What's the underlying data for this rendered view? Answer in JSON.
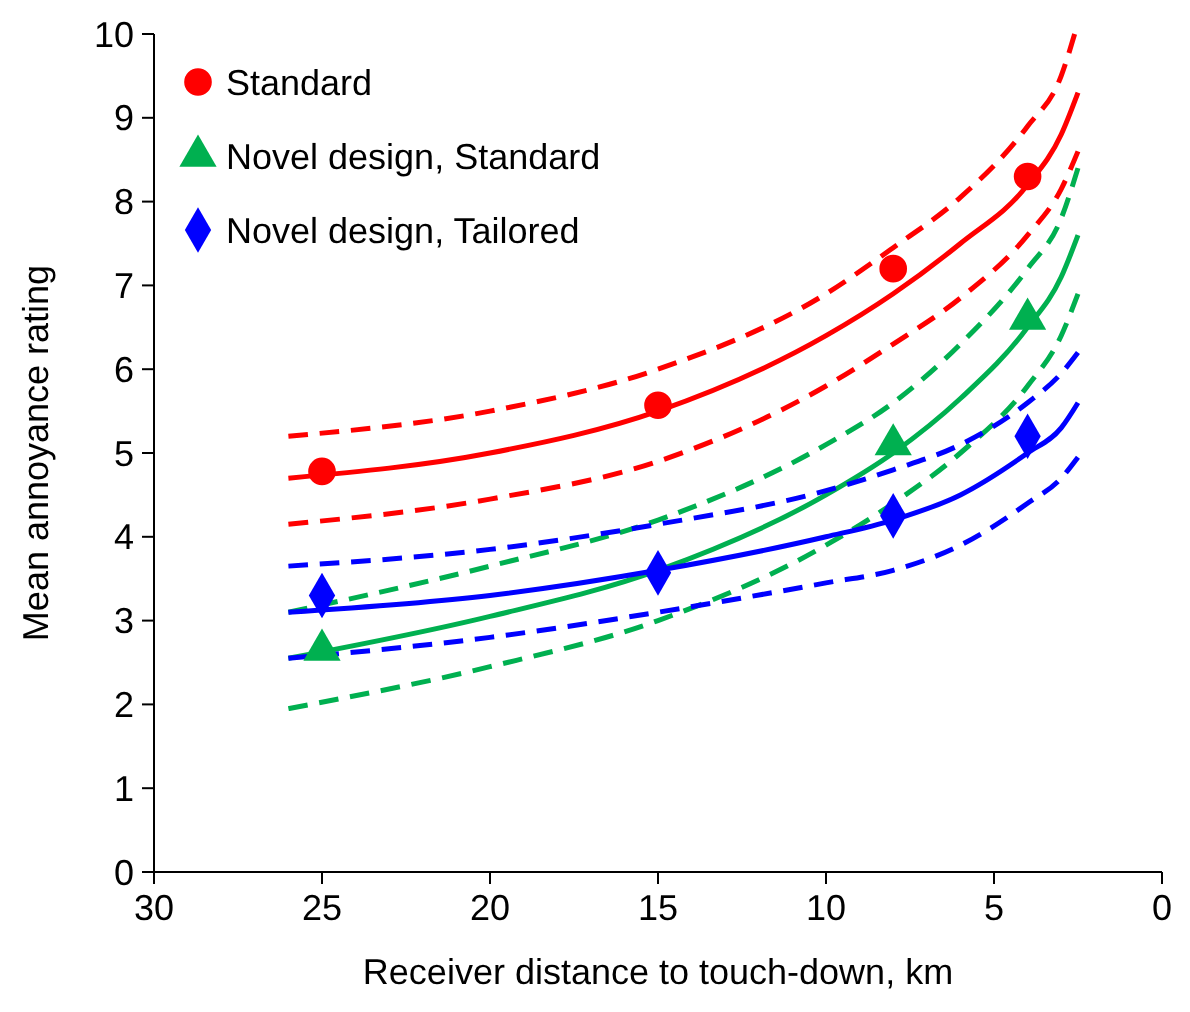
{
  "chart_data": {
    "type": "line",
    "xlabel": "Receiver distance to touch-down, km",
    "ylabel": "Mean annoyance rating",
    "xlim": [
      30,
      0
    ],
    "xticks": [
      30,
      25,
      20,
      15,
      10,
      5,
      0
    ],
    "ylim": [
      0,
      10
    ],
    "yticks": [
      0,
      1,
      2,
      3,
      4,
      5,
      6,
      7,
      8,
      9,
      10
    ],
    "grid": false,
    "legend": "top left",
    "series": [
      {
        "type": "line",
        "color": "#ff0000",
        "line_style": "solid",
        "marker": "none",
        "x": [
          26,
          20,
          15,
          10,
          8,
          6,
          4,
          3,
          2.5
        ],
        "values": [
          4.7,
          5.0,
          5.5,
          6.4,
          6.9,
          7.5,
          8.2,
          8.8,
          9.3
        ]
      },
      {
        "type": "line",
        "color": "#ff0000",
        "line_style": "dashed",
        "marker": "none",
        "x": [
          26,
          20,
          15,
          10,
          8,
          6,
          4,
          3,
          2.6
        ],
        "values": [
          5.2,
          5.5,
          6.0,
          6.9,
          7.45,
          8.05,
          8.9,
          9.5,
          10
        ]
      },
      {
        "type": "line",
        "color": "#ff0000",
        "line_style": "dashed",
        "marker": "none",
        "x": [
          26,
          20,
          15,
          10,
          8,
          6,
          4,
          3,
          2.5
        ],
        "values": [
          4.15,
          4.45,
          4.9,
          5.8,
          6.3,
          6.85,
          7.6,
          8.15,
          8.6
        ]
      },
      {
        "type": "line",
        "color": "#00b050",
        "line_style": "solid",
        "marker": "none",
        "x": [
          26,
          20,
          15,
          10,
          8,
          6,
          4,
          3,
          2.5
        ],
        "values": [
          2.55,
          3.05,
          3.6,
          4.5,
          5.0,
          5.65,
          6.5,
          7.1,
          7.6
        ]
      },
      {
        "type": "line",
        "color": "#00b050",
        "line_style": "dashed",
        "marker": "none",
        "x": [
          26,
          20,
          15,
          10,
          8,
          6,
          4,
          3,
          2.5
        ],
        "values": [
          3.1,
          3.65,
          4.2,
          5.1,
          5.6,
          6.3,
          7.2,
          7.8,
          8.4
        ]
      },
      {
        "type": "line",
        "color": "#00b050",
        "line_style": "dashed",
        "marker": "none",
        "x": [
          26,
          20,
          15,
          10,
          8,
          6,
          4,
          3,
          2.5
        ],
        "values": [
          1.95,
          2.45,
          3.0,
          3.9,
          4.4,
          5.0,
          5.8,
          6.4,
          6.9
        ]
      },
      {
        "type": "line",
        "color": "#0000ff",
        "line_style": "solid",
        "marker": "none",
        "x": [
          26,
          20,
          15,
          10,
          8,
          6,
          4,
          3,
          2.5
        ],
        "values": [
          3.1,
          3.3,
          3.6,
          4.0,
          4.2,
          4.5,
          5.0,
          5.3,
          5.6
        ]
      },
      {
        "type": "line",
        "color": "#0000ff",
        "line_style": "dashed",
        "marker": "none",
        "x": [
          26,
          20,
          15,
          10,
          8,
          6,
          4,
          3,
          2.5
        ],
        "values": [
          3.65,
          3.85,
          4.15,
          4.55,
          4.8,
          5.1,
          5.6,
          5.95,
          6.2
        ]
      },
      {
        "type": "line",
        "color": "#0000ff",
        "line_style": "dashed",
        "marker": "none",
        "x": [
          26,
          20,
          15,
          10,
          8,
          6,
          4,
          3,
          2.5
        ],
        "values": [
          2.55,
          2.8,
          3.1,
          3.45,
          3.6,
          3.9,
          4.4,
          4.7,
          4.95
        ]
      },
      {
        "type": "scatter",
        "name": "Standard",
        "color": "#ff0000",
        "marker": "circle",
        "x": [
          25,
          15,
          8,
          4
        ],
        "values": [
          4.78,
          5.57,
          7.2,
          8.3
        ]
      },
      {
        "type": "scatter",
        "name": "Novel design, Standard",
        "color": "#00b050",
        "marker": "triangle",
        "x": [
          25,
          8,
          4
        ],
        "values": [
          2.65,
          5.1,
          6.6
        ]
      },
      {
        "type": "scatter",
        "name": "Novel design, Tailored",
        "color": "#0000ff",
        "marker": "diamond",
        "x": [
          25,
          15,
          8,
          4
        ],
        "values": [
          3.3,
          3.57,
          4.25,
          5.2
        ]
      }
    ]
  }
}
